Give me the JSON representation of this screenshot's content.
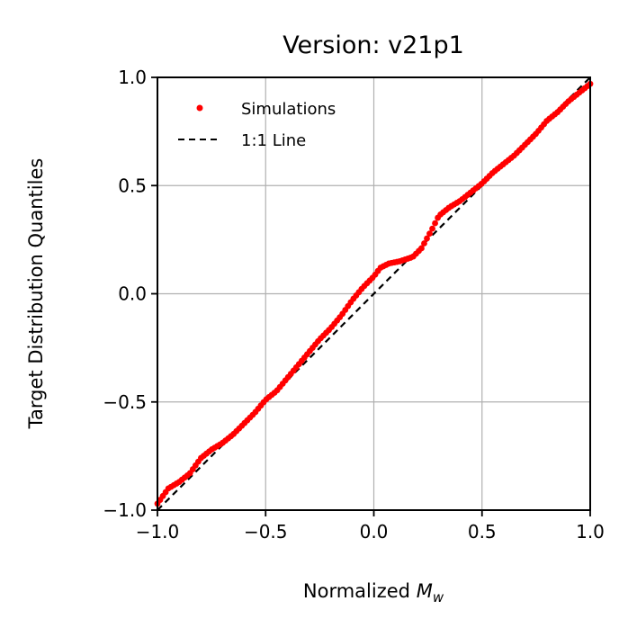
{
  "chart_data": {
    "type": "scatter",
    "title": "Version: v21p1",
    "xlabel": "Normalized",
    "xlabel_math_base": "M",
    "xlabel_math_sub": "w",
    "ylabel": "Target Distribution Quantiles",
    "xlim": [
      -1.0,
      1.0
    ],
    "ylim": [
      -1.0,
      1.0
    ],
    "xticks": [
      "−1.0",
      "−0.5",
      "0.0",
      "0.5",
      "1.0"
    ],
    "yticks": [
      "−1.0",
      "−0.5",
      "0.0",
      "0.5",
      "1.0"
    ],
    "xtick_values": [
      -1.0,
      -0.5,
      0.0,
      0.5,
      1.0
    ],
    "ytick_values": [
      -1.0,
      -0.5,
      0.0,
      0.5,
      1.0
    ],
    "grid": true,
    "legend_position": "upper-left",
    "series": [
      {
        "name": "Simulations",
        "kind": "points",
        "color": "#ff0000",
        "knots": [
          [
            -1.0,
            -0.97
          ],
          [
            -0.95,
            -0.9
          ],
          [
            -0.9,
            -0.87
          ],
          [
            -0.85,
            -0.83
          ],
          [
            -0.8,
            -0.76
          ],
          [
            -0.75,
            -0.72
          ],
          [
            -0.7,
            -0.69
          ],
          [
            -0.65,
            -0.65
          ],
          [
            -0.6,
            -0.6
          ],
          [
            -0.55,
            -0.55
          ],
          [
            -0.5,
            -0.49
          ],
          [
            -0.45,
            -0.45
          ],
          [
            -0.4,
            -0.39
          ],
          [
            -0.35,
            -0.33
          ],
          [
            -0.3,
            -0.27
          ],
          [
            -0.25,
            -0.21
          ],
          [
            -0.2,
            -0.16
          ],
          [
            -0.15,
            -0.1
          ],
          [
            -0.1,
            -0.03
          ],
          [
            -0.05,
            0.03
          ],
          [
            0.0,
            0.08
          ],
          [
            0.03,
            0.12
          ],
          [
            0.07,
            0.14
          ],
          [
            0.12,
            0.15
          ],
          [
            0.18,
            0.17
          ],
          [
            0.22,
            0.21
          ],
          [
            0.27,
            0.3
          ],
          [
            0.3,
            0.36
          ],
          [
            0.35,
            0.4
          ],
          [
            0.4,
            0.43
          ],
          [
            0.45,
            0.47
          ],
          [
            0.5,
            0.51
          ],
          [
            0.55,
            0.56
          ],
          [
            0.6,
            0.6
          ],
          [
            0.65,
            0.64
          ],
          [
            0.7,
            0.69
          ],
          [
            0.75,
            0.74
          ],
          [
            0.8,
            0.8
          ],
          [
            0.85,
            0.84
          ],
          [
            0.9,
            0.89
          ],
          [
            0.95,
            0.93
          ],
          [
            1.0,
            0.97
          ]
        ],
        "n_points": 160
      },
      {
        "name": "1:1 Line",
        "kind": "dashed-line",
        "color": "#000000",
        "x": [
          -1.0,
          1.0
        ],
        "y": [
          -1.0,
          1.0
        ]
      }
    ]
  }
}
